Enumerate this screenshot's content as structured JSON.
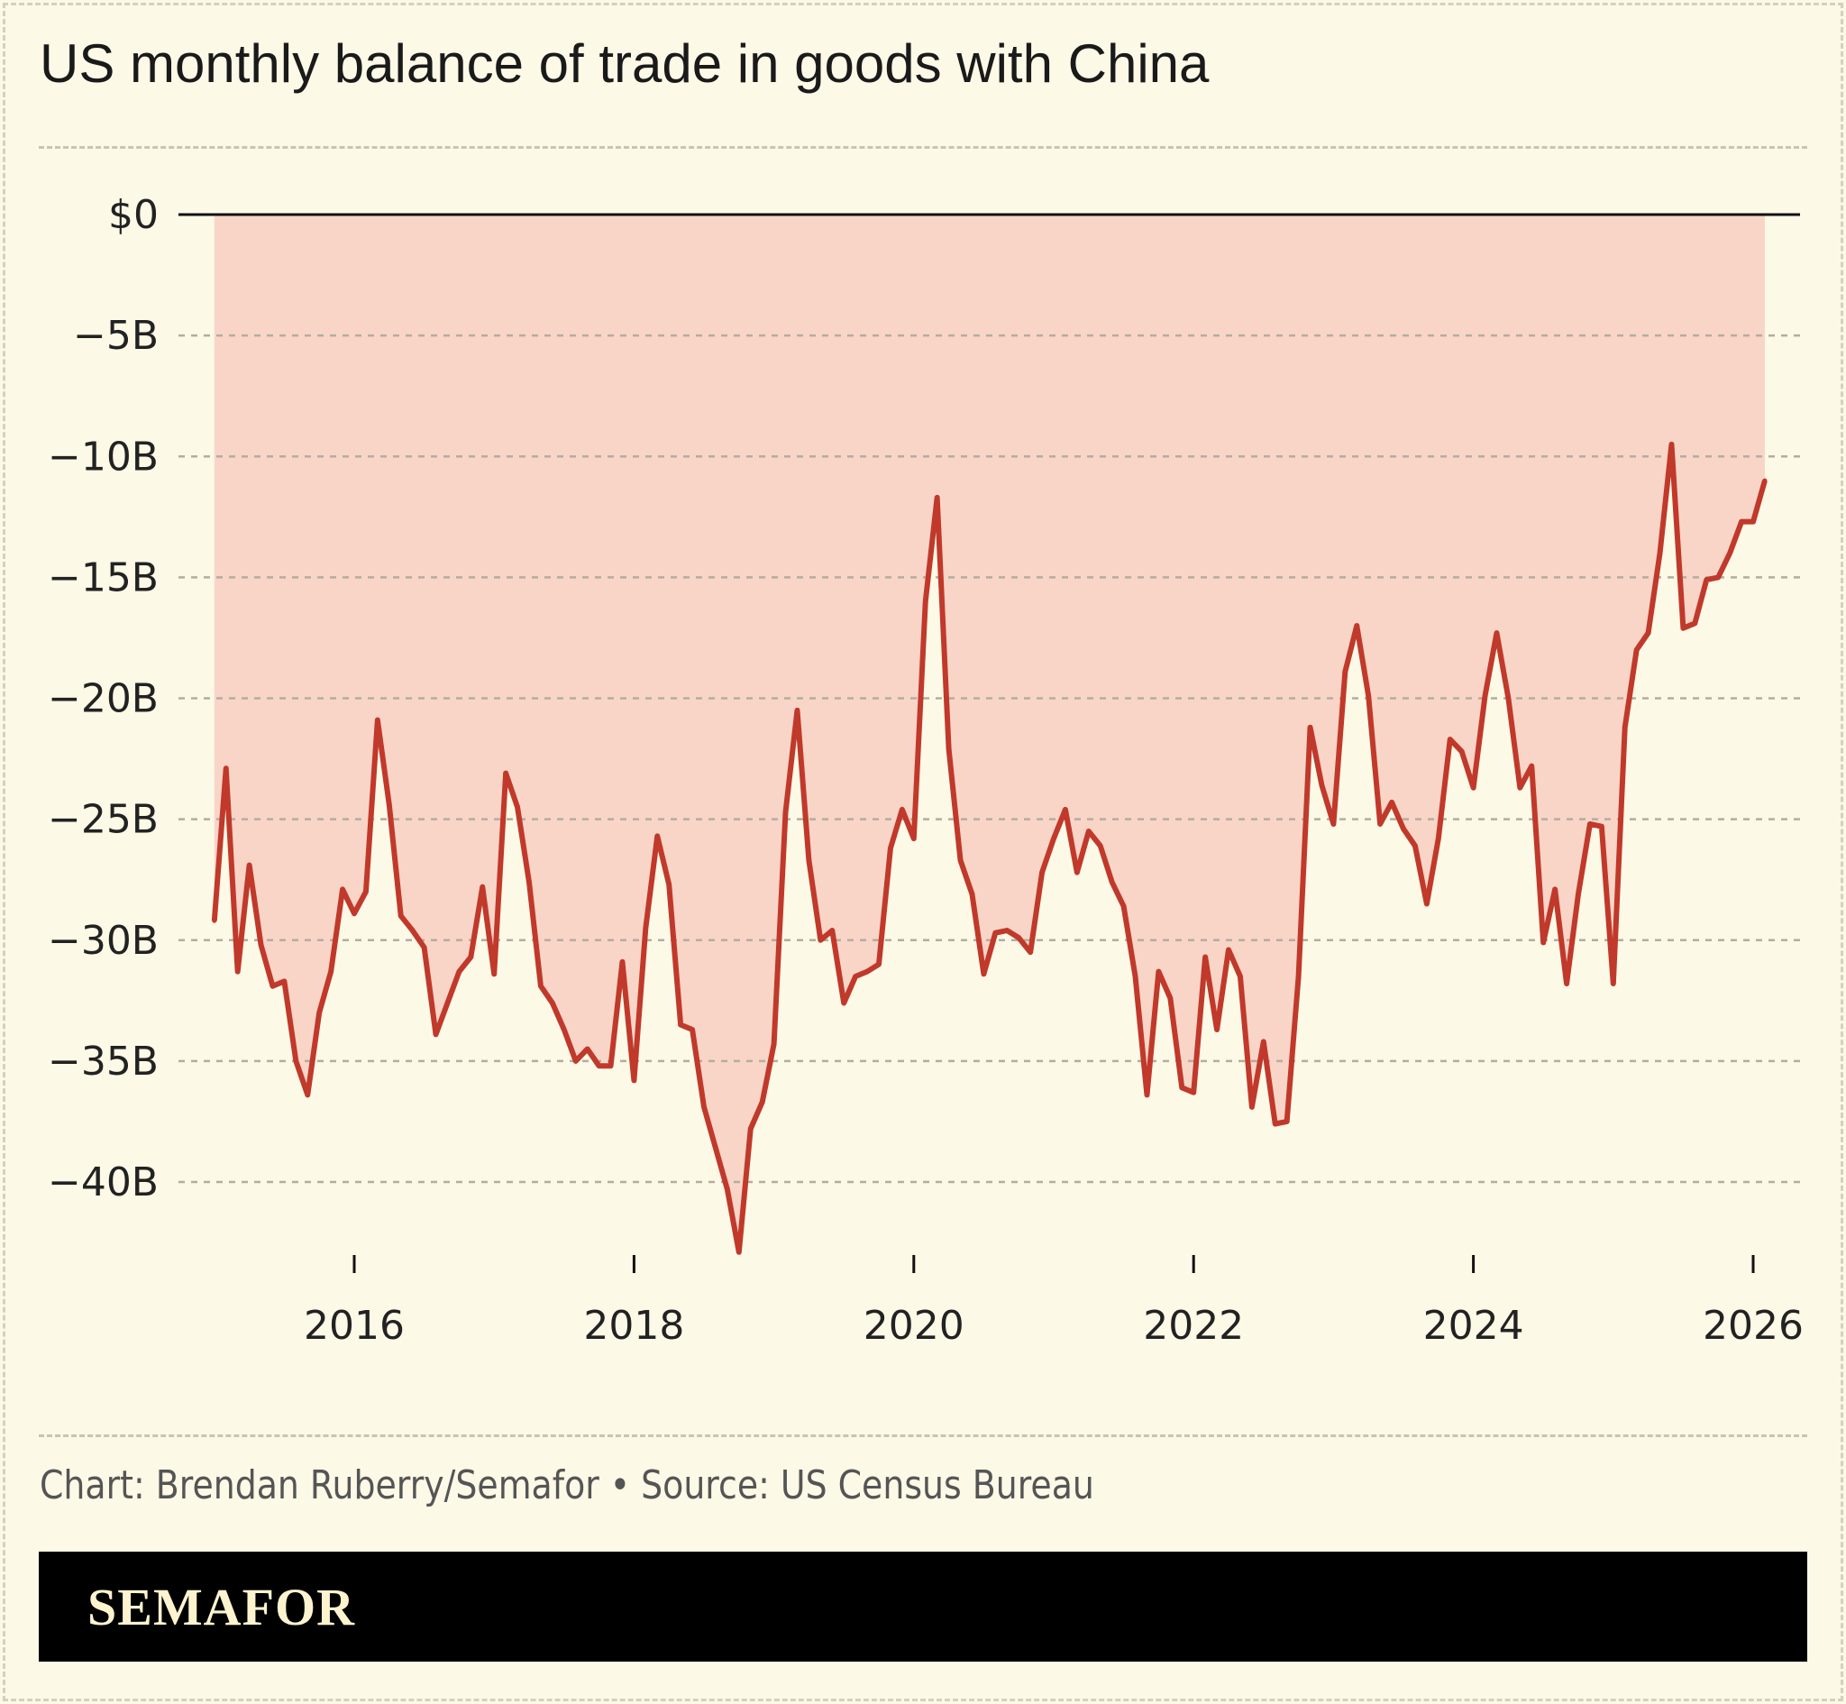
{
  "title": "US monthly balance of trade in goods with China",
  "credit": "Chart: Brendan Ruberry/Semafor • Source: US Census Bureau",
  "logo": "SEMAFOR",
  "colors": {
    "line": "#c0392b",
    "fill": "#f9d5c7",
    "background": "#fdf9e7"
  },
  "chart_data": {
    "type": "area",
    "title": "US monthly balance of trade in goods with China",
    "xlabel": "",
    "ylabel": "",
    "ylim": [
      -43,
      0
    ],
    "grid": true,
    "y_ticks": [
      0,
      -5,
      -10,
      -15,
      -20,
      -25,
      -30,
      -35,
      -40
    ],
    "y_tick_labels": [
      "$0",
      "−5B",
      "−10B",
      "−15B",
      "−20B",
      "−25B",
      "−30B",
      "−35B",
      "−40B"
    ],
    "x_ticks": [
      2016,
      2018,
      2020,
      2022,
      2024,
      2026
    ],
    "x_tick_labels": [
      "2016",
      "2018",
      "2020",
      "2022",
      "2024",
      "2026"
    ],
    "x_start": "2015-01",
    "x_end": "2026-02",
    "x_unit": "month",
    "values": [
      -29.2,
      -22.9,
      -31.3,
      -26.9,
      -30.2,
      -31.9,
      -31.7,
      -35.0,
      -36.4,
      -33.0,
      -31.3,
      -27.9,
      -28.9,
      -28.0,
      -20.9,
      -24.4,
      -29.0,
      -29.6,
      -30.3,
      -33.9,
      -32.6,
      -31.3,
      -30.7,
      -27.8,
      -31.4,
      -23.1,
      -24.5,
      -27.6,
      -31.9,
      -32.6,
      -33.7,
      -35.0,
      -34.5,
      -35.2,
      -35.2,
      -30.9,
      -35.8,
      -29.5,
      -25.7,
      -27.7,
      -33.5,
      -33.7,
      -36.9,
      -38.6,
      -40.3,
      -42.9,
      -37.8,
      -36.7,
      -34.3,
      -24.7,
      -20.5,
      -26.7,
      -30.0,
      -29.6,
      -32.6,
      -31.5,
      -31.3,
      -31.0,
      -26.2,
      -24.6,
      -25.8,
      -16.0,
      -11.7,
      -22.1,
      -26.7,
      -28.1,
      -31.4,
      -29.7,
      -29.6,
      -29.9,
      -30.5,
      -27.2,
      -25.8,
      -24.6,
      -27.2,
      -25.5,
      -26.1,
      -27.6,
      -28.6,
      -31.5,
      -36.4,
      -31.3,
      -32.4,
      -36.1,
      -36.3,
      -30.7,
      -33.7,
      -30.4,
      -31.5,
      -36.9,
      -34.2,
      -37.6,
      -37.5,
      -31.5,
      -21.2,
      -23.6,
      -25.2,
      -18.9,
      -17.0,
      -19.9,
      -25.2,
      -24.3,
      -25.4,
      -26.1,
      -28.5,
      -25.8,
      -21.7,
      -22.2,
      -23.7,
      -19.9,
      -17.3,
      -20.0,
      -23.7,
      -22.8,
      -30.1,
      -27.9,
      -31.8,
      -28.1,
      -25.2,
      -25.3,
      -31.8,
      -21.2,
      -18.0,
      -17.3,
      -14.0,
      -9.5,
      -17.1,
      -16.9,
      -15.1,
      -15.0,
      -14.0,
      -12.7,
      -12.7,
      -11.0
    ]
  }
}
